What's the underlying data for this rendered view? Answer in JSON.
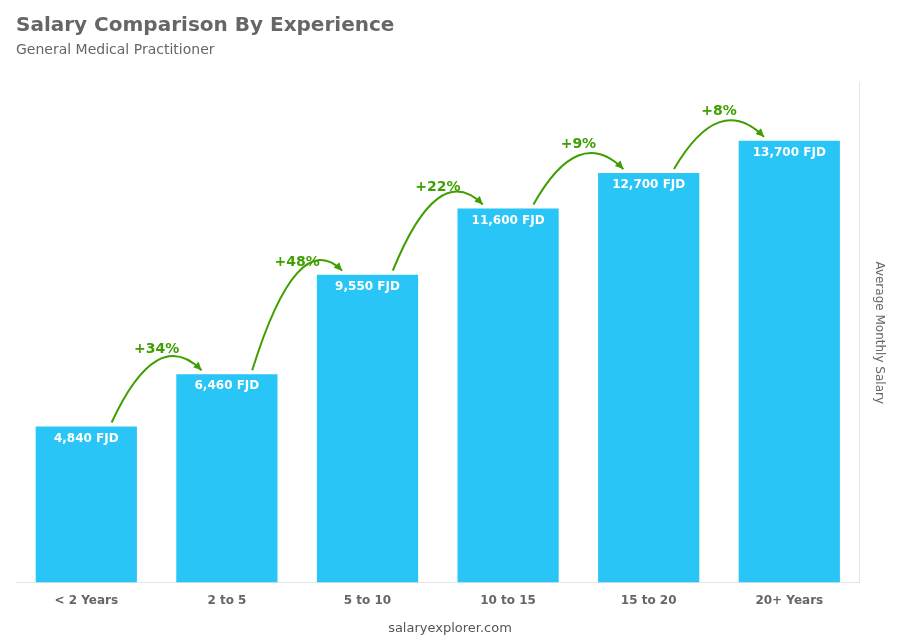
{
  "chart_data": {
    "type": "bar",
    "title": "Salary Comparison By Experience",
    "subtitle": "General Medical Practitioner",
    "categories": [
      "< 2 Years",
      "2 to 5",
      "5 to 10",
      "10 to 15",
      "15 to 20",
      "20+ Years"
    ],
    "values": [
      4840,
      6460,
      9550,
      11600,
      12700,
      13700
    ],
    "value_labels": [
      "4,840 FJD",
      "6,460 FJD",
      "9,550 FJD",
      "11,600 FJD",
      "12,700 FJD",
      "13,700 FJD"
    ],
    "data_labels": true,
    "color": "#29c5f6",
    "ylabel": "Average Monthly Salary",
    "ylim": [
      0,
      15500
    ],
    "tick_labels": "x",
    "grid": false,
    "annotations": [
      "+34%",
      "+48%",
      "+22%",
      "+9%",
      "+8%"
    ],
    "footer": "salaryexplorer.com"
  }
}
